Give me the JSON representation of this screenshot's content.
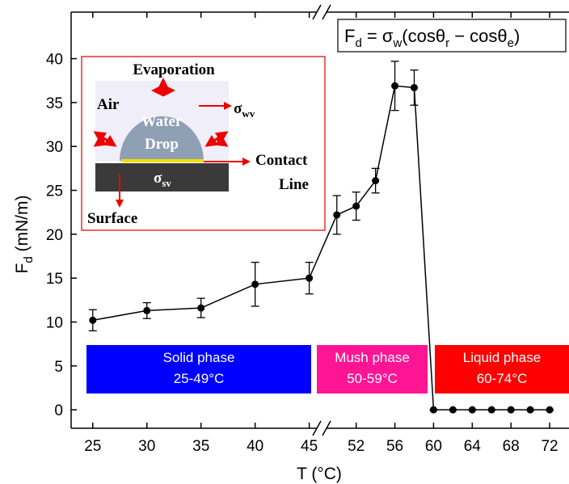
{
  "chart_data": {
    "type": "line",
    "x_label": "T (°C)",
    "y_label": [
      "F",
      "d",
      " (mN/m)"
    ],
    "formula": [
      "F",
      "d",
      " = σ",
      "w",
      "(cosθ",
      "r",
      " − cosθ",
      "e",
      ")"
    ],
    "x": [
      25,
      30,
      35,
      40,
      45,
      50,
      52,
      54,
      56,
      58,
      60,
      62,
      64,
      66,
      68,
      70,
      72
    ],
    "series": [
      {
        "color": "#000000",
        "values": [
          10.2,
          11.3,
          11.6,
          14.3,
          15.0,
          22.2,
          23.2,
          26.1,
          36.9,
          36.7,
          0,
          0,
          0,
          0,
          0,
          0,
          0
        ],
        "errors": [
          1.2,
          0.9,
          1.1,
          2.5,
          1.8,
          2.2,
          1.6,
          1.4,
          2.8,
          2.0,
          0,
          0,
          0,
          0,
          0,
          0,
          0
        ]
      }
    ],
    "xlim": [
      23,
      74
    ],
    "x_break": [
      46,
      48.6
    ],
    "xticks": [
      25,
      30,
      35,
      40,
      45,
      52,
      56,
      60,
      64,
      68,
      72
    ],
    "ylim": [
      -2.1,
      45.3
    ],
    "yticks": [
      0,
      5,
      10,
      15,
      20,
      25,
      30,
      35,
      40
    ],
    "phases": [
      {
        "label": "Solid phase",
        "range": "25-49°C",
        "color": "#0000ff"
      },
      {
        "label": "Mush phase",
        "range": "50-59°C",
        "color": "#ff1493"
      },
      {
        "label": "Liquid phase",
        "range": "60-74°C",
        "color": "#ff0000"
      }
    ],
    "inset": {
      "evaporation": "Evaporation",
      "air": "Air",
      "sigma_wv": [
        "σ",
        "wv"
      ],
      "water": "Water",
      "drop": "Drop",
      "sigma_sv": [
        "σ",
        "sv"
      ],
      "contact": "Contact",
      "line": "Line",
      "surface": "Surface"
    }
  }
}
